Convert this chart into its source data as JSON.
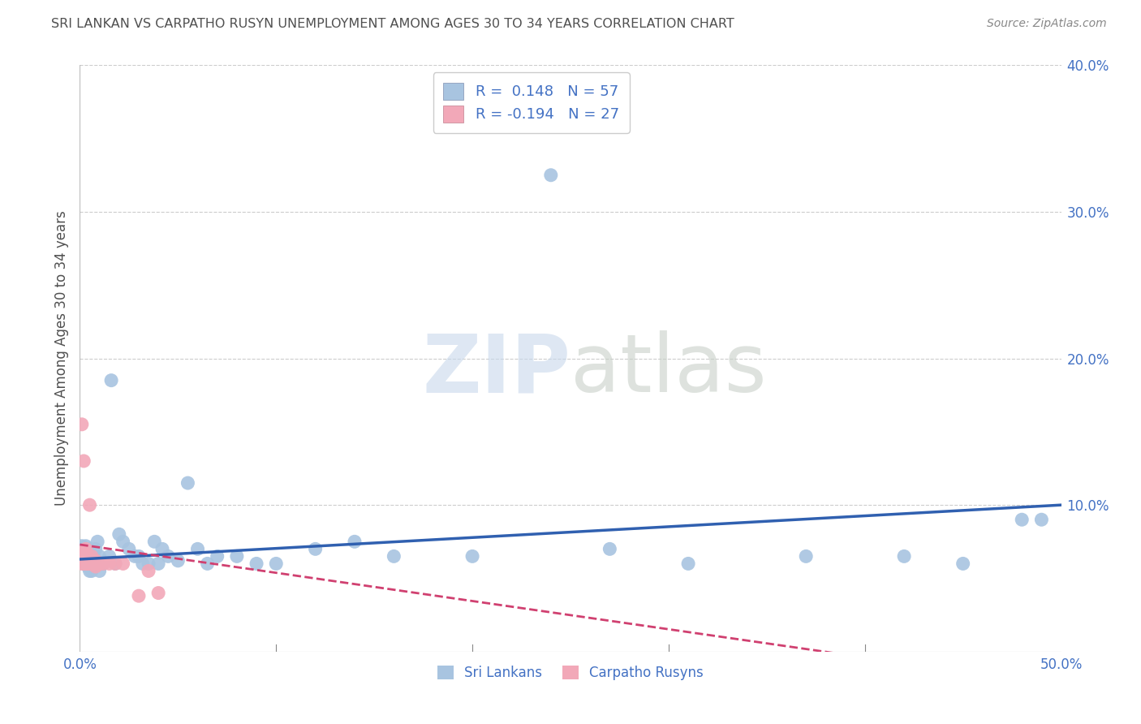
{
  "title": "SRI LANKAN VS CARPATHO RUSYN UNEMPLOYMENT AMONG AGES 30 TO 34 YEARS CORRELATION CHART",
  "source": "Source: ZipAtlas.com",
  "ylabel": "Unemployment Among Ages 30 to 34 years",
  "xlim": [
    0.0,
    0.5
  ],
  "ylim": [
    0.0,
    0.4
  ],
  "xticks": [
    0.0,
    0.1,
    0.2,
    0.3,
    0.4,
    0.5
  ],
  "xticklabels": [
    "0.0%",
    "",
    "",
    "",
    "",
    "50.0%"
  ],
  "yticks": [
    0.1,
    0.2,
    0.3,
    0.4
  ],
  "yticklabels": [
    "10.0%",
    "20.0%",
    "30.0%",
    "40.0%"
  ],
  "legend_r1": "R =  0.148   N = 57",
  "legend_r2": "R = -0.194   N = 27",
  "sri_lankan_color": "#a8c4e0",
  "carpatho_color": "#f2a8b8",
  "trend_blue": "#3060b0",
  "trend_pink": "#d04070",
  "background": "#ffffff",
  "grid_color": "#c0c0c0",
  "title_color": "#505050",
  "axis_label_color": "#4472c4",
  "sri_lankans_x": [
    0.001,
    0.001,
    0.002,
    0.002,
    0.003,
    0.003,
    0.003,
    0.004,
    0.004,
    0.005,
    0.005,
    0.005,
    0.006,
    0.006,
    0.006,
    0.007,
    0.007,
    0.008,
    0.008,
    0.009,
    0.01,
    0.01,
    0.012,
    0.015,
    0.016,
    0.018,
    0.02,
    0.022,
    0.025,
    0.028,
    0.03,
    0.032,
    0.035,
    0.038,
    0.04,
    0.042,
    0.045,
    0.05,
    0.055,
    0.06,
    0.065,
    0.07,
    0.08,
    0.09,
    0.1,
    0.12,
    0.14,
    0.16,
    0.2,
    0.24,
    0.27,
    0.31,
    0.37,
    0.42,
    0.45,
    0.48,
    0.49
  ],
  "sri_lankans_y": [
    0.067,
    0.072,
    0.065,
    0.07,
    0.06,
    0.068,
    0.072,
    0.058,
    0.065,
    0.055,
    0.062,
    0.07,
    0.06,
    0.065,
    0.055,
    0.058,
    0.065,
    0.07,
    0.06,
    0.075,
    0.065,
    0.055,
    0.06,
    0.065,
    0.185,
    0.06,
    0.08,
    0.075,
    0.07,
    0.065,
    0.065,
    0.06,
    0.06,
    0.075,
    0.06,
    0.07,
    0.065,
    0.062,
    0.115,
    0.07,
    0.06,
    0.065,
    0.065,
    0.06,
    0.06,
    0.07,
    0.075,
    0.065,
    0.065,
    0.325,
    0.07,
    0.06,
    0.065,
    0.065,
    0.06,
    0.09,
    0.09
  ],
  "carpatho_x": [
    0.001,
    0.001,
    0.001,
    0.002,
    0.002,
    0.002,
    0.003,
    0.003,
    0.003,
    0.004,
    0.004,
    0.005,
    0.005,
    0.006,
    0.006,
    0.007,
    0.008,
    0.008,
    0.009,
    0.01,
    0.012,
    0.015,
    0.018,
    0.022,
    0.03,
    0.035,
    0.04
  ],
  "carpatho_y": [
    0.155,
    0.06,
    0.065,
    0.13,
    0.06,
    0.068,
    0.06,
    0.065,
    0.07,
    0.06,
    0.065,
    0.1,
    0.06,
    0.06,
    0.065,
    0.06,
    0.062,
    0.058,
    0.06,
    0.06,
    0.06,
    0.06,
    0.06,
    0.06,
    0.038,
    0.055,
    0.04
  ],
  "blue_line_x": [
    0.0,
    0.5
  ],
  "blue_line_y": [
    0.063,
    0.1
  ],
  "pink_line_x": [
    0.0,
    0.4
  ],
  "pink_line_y": [
    0.073,
    -0.004
  ]
}
